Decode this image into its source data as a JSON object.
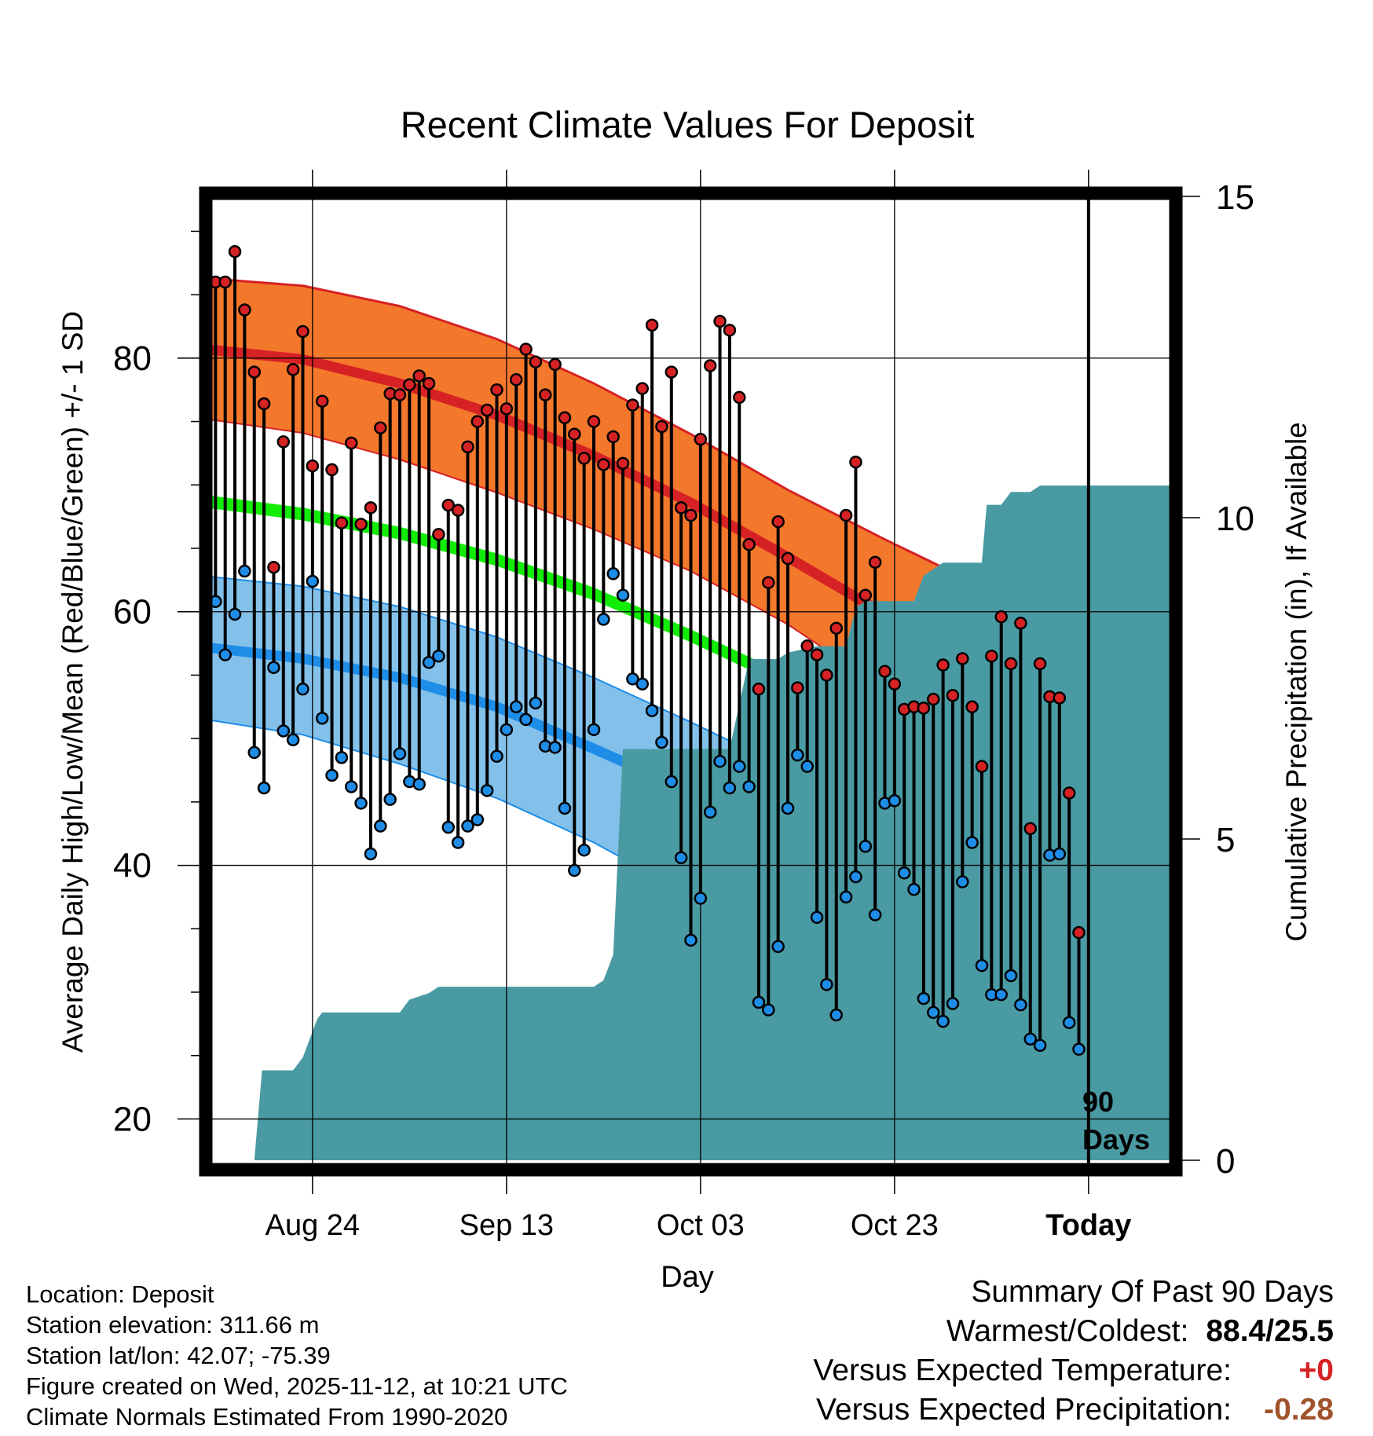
{
  "chart_data": {
    "type": "line",
    "title": "Recent Climate Values For Deposit",
    "xlabel": "Day",
    "ylabel_left": "Average Daily High/Low/Mean (Red/Blue/Green) +/- 1 SD",
    "ylabel_right": "Cumulative Precipitation (in), If Available",
    "x_ticks": [
      {
        "day": 11,
        "label": "Aug 24"
      },
      {
        "day": 31,
        "label": "Sep 13"
      },
      {
        "day": 51,
        "label": "Oct 03"
      },
      {
        "day": 71,
        "label": "Oct 23"
      },
      {
        "day": 91,
        "label": "Today"
      }
    ],
    "x_range": [
      0,
      100
    ],
    "y_left_range": [
      16,
      93
    ],
    "y_left_ticks": [
      20,
      40,
      60,
      80
    ],
    "y_right_range": [
      0,
      15
    ],
    "y_right_ticks": [
      0,
      5,
      10,
      15
    ],
    "today_day": 91,
    "today_label": [
      "90",
      "Days"
    ],
    "normals": {
      "days": [
        0,
        10,
        20,
        30,
        40,
        50,
        60,
        70,
        80,
        90,
        100
      ],
      "high_mean": [
        80.7,
        79.9,
        78.0,
        75.5,
        72.3,
        68.6,
        64.3,
        59.8,
        55.2,
        50.6,
        45.7
      ],
      "high_sd_upper": [
        86.3,
        85.7,
        84.1,
        81.5,
        78.0,
        74.0,
        69.6,
        65.7,
        62.0,
        58.0,
        55.5
      ],
      "high_sd_lower": [
        75.2,
        74.1,
        72.0,
        69.4,
        66.5,
        63.2,
        59.0,
        53.9,
        48.4,
        43.2,
        36.0
      ],
      "mean_band_upper": [
        69.2,
        68.2,
        66.7,
        64.6,
        61.9,
        58.6,
        55.0,
        51.2,
        47.2,
        42.5,
        37.7
      ],
      "mean_band_lower": [
        68.2,
        67.2,
        65.7,
        63.6,
        60.9,
        57.6,
        54.0,
        50.2,
        46.2,
        41.5,
        36.7
      ],
      "low_mean": [
        57.2,
        56.3,
        54.8,
        52.5,
        49.2,
        45.8,
        42.3,
        38.8,
        35.0,
        31.5,
        28.0
      ],
      "low_sd_upper": [
        62.8,
        62.0,
        60.4,
        58.0,
        54.8,
        51.3,
        47.6,
        44.0,
        40.7,
        38.0,
        35.8
      ],
      "low_sd_lower": [
        51.5,
        50.3,
        48.0,
        45.3,
        41.8,
        37.6,
        33.6,
        29.9,
        26.8,
        24.0,
        21.8
      ]
    },
    "daily_high": [
      86.0,
      86.0,
      88.4,
      83.8,
      78.9,
      76.4,
      63.5,
      73.4,
      79.1,
      82.1,
      71.5,
      76.6,
      71.2,
      67.0,
      73.3,
      66.9,
      68.2,
      74.5,
      77.2,
      77.1,
      77.9,
      78.6,
      78.0,
      66.1,
      68.4,
      68.0,
      73.0,
      75.0,
      75.9,
      77.5,
      76.0,
      78.3,
      80.7,
      79.7,
      77.1,
      79.5,
      75.3,
      74.0,
      72.1,
      75.0,
      71.6,
      73.8,
      71.7,
      76.3,
      77.6,
      82.6,
      74.6,
      78.9,
      68.2,
      67.6,
      73.6,
      79.4,
      82.9,
      82.2,
      76.9,
      65.3,
      53.9,
      62.3,
      67.1,
      64.2,
      54.0,
      57.3,
      56.6,
      55.0,
      58.7,
      67.6,
      71.8,
      61.3,
      63.9,
      55.3,
      54.3,
      52.3,
      52.5,
      52.4,
      53.1,
      55.8,
      53.4,
      56.3,
      52.5,
      47.8,
      56.5,
      59.6,
      55.9,
      59.1,
      42.9,
      55.9,
      53.3,
      53.2,
      45.7,
      34.7
    ],
    "daily_low": [
      60.8,
      56.6,
      59.8,
      63.2,
      48.9,
      46.1,
      55.6,
      50.6,
      49.9,
      53.9,
      62.4,
      51.6,
      47.1,
      48.5,
      46.2,
      44.9,
      40.9,
      43.1,
      45.2,
      48.8,
      46.6,
      46.4,
      56.0,
      56.5,
      43.0,
      41.8,
      43.1,
      43.6,
      45.9,
      48.6,
      50.7,
      52.5,
      51.5,
      52.8,
      49.4,
      49.3,
      44.5,
      39.6,
      41.2,
      50.7,
      59.4,
      63.0,
      61.3,
      54.7,
      54.3,
      52.2,
      49.7,
      46.6,
      40.6,
      34.1,
      37.4,
      44.2,
      48.2,
      46.1,
      47.8,
      46.2,
      29.2,
      28.6,
      33.6,
      44.5,
      48.7,
      47.8,
      35.9,
      30.6,
      28.2,
      37.5,
      39.1,
      41.5,
      36.1,
      44.9,
      45.1,
      39.4,
      38.1,
      29.5,
      28.4,
      27.7,
      29.1,
      38.7,
      41.8,
      32.1,
      29.8,
      29.8,
      31.3,
      29.0,
      26.3,
      25.8,
      40.8,
      40.9,
      27.6,
      25.5
    ],
    "cumulative_precip": {
      "days": [
        0,
        5,
        5.8,
        9,
        10,
        11.5,
        12,
        16,
        20,
        21,
        23,
        24,
        35,
        40,
        41,
        42,
        43,
        44,
        48,
        50,
        51,
        54,
        55,
        56,
        57,
        59,
        60,
        63,
        64,
        66,
        67,
        68,
        71,
        73,
        74,
        76,
        77,
        80,
        80.5,
        82,
        83,
        85,
        86,
        88,
        100
      ],
      "values": [
        0,
        0,
        1.4,
        1.4,
        1.6,
        2.2,
        2.3,
        2.3,
        2.3,
        2.5,
        2.6,
        2.7,
        2.7,
        2.7,
        2.8,
        3.2,
        6.4,
        6.4,
        6.4,
        6.4,
        6.4,
        6.4,
        7.1,
        7.8,
        7.8,
        7.8,
        7.9,
        8.0,
        8.0,
        8.0,
        8.6,
        8.7,
        8.7,
        8.7,
        9.1,
        9.3,
        9.3,
        9.3,
        10.2,
        10.2,
        10.4,
        10.4,
        10.5,
        10.5,
        10.5
      ]
    }
  },
  "colors": {
    "high_band": "#f4782c",
    "high_line": "#d62224",
    "mean_band": "#13ec07",
    "low_band": "#83c1ea",
    "low_line": "#1e8de8",
    "precip": "#4a9aa3",
    "high_marker": "#d62224",
    "low_marker": "#1e8de8"
  },
  "info": {
    "location": "Location: Deposit",
    "elevation": "Station elevation: 311.66 m",
    "latlon": "Station lat/lon: 42.07; -75.39",
    "created": "Figure created on Wed, 2025-11-12, at 10:21 UTC",
    "normals": "Climate Normals Estimated From 1990-2020"
  },
  "summary": {
    "title": "Summary Of Past 90 Days",
    "warm_label": "Warmest/Coldest:",
    "warm_value": "88.4/25.5",
    "temp_label": "Versus Expected Temperature:",
    "temp_value": "+0",
    "temp_color": "#d62224",
    "precip_label": "Versus Expected Precipitation:",
    "precip_value": "-0.28",
    "precip_color": "#a0522d"
  }
}
